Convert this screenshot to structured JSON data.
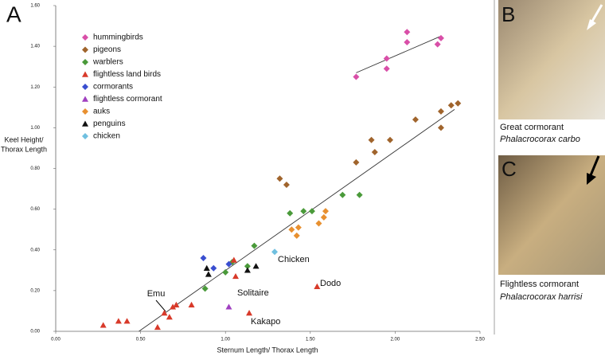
{
  "chart_data": {
    "type": "scatter",
    "panel_label": "A",
    "xlabel": "Sternum Length/ Thorax Length",
    "ylabel_lines": [
      "Keel Height/",
      "Thorax Length"
    ],
    "xlim": [
      0,
      2.5
    ],
    "ylim": [
      0,
      1.6
    ],
    "xticks": [
      {
        "value": 0,
        "label": "0.00"
      },
      {
        "value": 0.5,
        "label": "0.50"
      },
      {
        "value": 1,
        "label": "1.00"
      },
      {
        "value": 1.5,
        "label": "1.50"
      },
      {
        "value": 2,
        "label": "2.00"
      },
      {
        "value": 2.5,
        "label": "2.50"
      }
    ],
    "yticks": [
      {
        "value": 0,
        "label": "0.00"
      },
      {
        "value": 0.2,
        "label": "0.20"
      },
      {
        "value": 0.4,
        "label": "0.40"
      },
      {
        "value": 0.6,
        "label": "0.60"
      },
      {
        "value": 0.8,
        "label": "0.80"
      },
      {
        "value": 1,
        "label": "1.00"
      },
      {
        "value": 1.2,
        "label": "1.20"
      },
      {
        "value": 1.4,
        "label": "1.40"
      },
      {
        "value": 1.6,
        "label": "1.60"
      }
    ],
    "series": [
      {
        "name": "hummingbirds",
        "color": "#d94fa8",
        "marker": "diamond",
        "x": [
          1.77,
          1.95,
          1.95,
          2.07,
          2.07,
          2.25,
          2.27
        ],
        "values": [
          1.25,
          1.34,
          1.29,
          1.47,
          1.42,
          1.41,
          1.44
        ]
      },
      {
        "name": "pigeons",
        "color": "#a0642c",
        "marker": "diamond",
        "x": [
          2.33,
          2.37,
          2.27,
          2.27,
          2.12,
          1.97,
          1.86,
          1.88,
          1.77,
          1.32,
          1.36
        ],
        "values": [
          1.11,
          1.12,
          1.08,
          1.0,
          1.04,
          0.94,
          0.94,
          0.88,
          0.83,
          0.75,
          0.72
        ]
      },
      {
        "name": "warblers",
        "color": "#4a9a3a",
        "marker": "diamond",
        "x": [
          1.69,
          1.79,
          1.38,
          1.46,
          1.51,
          1.17,
          1.13,
          1.0,
          0.88,
          1.04
        ],
        "values": [
          0.67,
          0.67,
          0.58,
          0.59,
          0.59,
          0.42,
          0.32,
          0.29,
          0.21,
          0.34
        ]
      },
      {
        "name": "flightless land birds",
        "color": "#d83a2a",
        "marker": "triangle",
        "x": [
          0.28,
          0.37,
          0.42,
          0.6,
          0.64,
          0.67,
          0.69,
          0.71,
          0.8,
          1.06,
          1.05,
          1.14,
          1.54
        ],
        "values": [
          0.03,
          0.05,
          0.05,
          0.02,
          0.09,
          0.07,
          0.12,
          0.13,
          0.13,
          0.27,
          0.35,
          0.09,
          0.22
        ]
      },
      {
        "name": "cormorants",
        "color": "#3a4ed0",
        "marker": "diamond",
        "x": [
          0.87,
          0.93,
          1.02
        ],
        "values": [
          0.36,
          0.31,
          0.33
        ]
      },
      {
        "name": "flightless cormorant",
        "color": "#a040c0",
        "marker": "triangle",
        "x": [
          1.02
        ],
        "values": [
          0.12
        ]
      },
      {
        "name": "auks",
        "color": "#e89030",
        "marker": "diamond",
        "x": [
          1.59,
          1.58,
          1.55,
          1.43,
          1.39,
          1.42
        ],
        "values": [
          0.59,
          0.56,
          0.53,
          0.51,
          0.5,
          0.47
        ]
      },
      {
        "name": "penguins",
        "color": "#111111",
        "marker": "triangle",
        "x": [
          0.89,
          0.9,
          1.13,
          1.18
        ],
        "values": [
          0.31,
          0.28,
          0.3,
          0.32
        ]
      },
      {
        "name": "chicken",
        "color": "#70c0e0",
        "marker": "diamond",
        "x": [
          1.29
        ],
        "values": [
          0.39
        ]
      }
    ],
    "trendlines": [
      {
        "x": [
          1.77,
          2.27
        ],
        "values": [
          1.27,
          1.45
        ]
      },
      {
        "x": [
          0.49,
          2.35
        ],
        "values": [
          0,
          1.09
        ]
      }
    ],
    "annotations": [
      "Chicken",
      "Solitaire",
      "Dodo",
      "Emu",
      "Kakapo"
    ]
  },
  "panels": [
    {
      "label": "B",
      "caption": "Great cormorant",
      "species": "Phalacrocorax carbo"
    },
    {
      "label": "C",
      "caption": "Flightless cormorant",
      "species": "Phalacrocorax harrisi"
    }
  ]
}
